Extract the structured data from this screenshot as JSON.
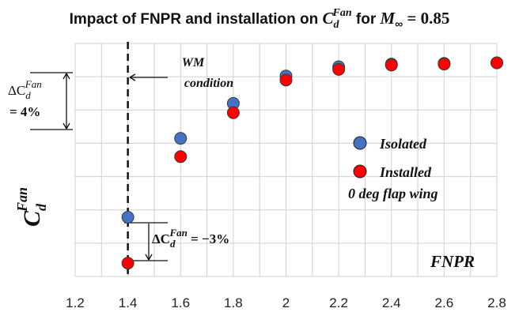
{
  "chart_data": {
    "type": "scatter",
    "title": {
      "prefix": "Impact of FNPR and installation on ",
      "sym": "C",
      "sub": "d",
      "sup": "Fan",
      "mid": " for ",
      "mach_sym": "M",
      "mach_sub": "∞",
      "mach_val": " = 0.85"
    },
    "xlabel": "FNPR",
    "ylabel": {
      "sym": "C",
      "sub": "d",
      "sup": "Fan"
    },
    "xlim": [
      1.2,
      2.8
    ],
    "x_ticks": [
      "1.2",
      "1.4",
      "1.6",
      "1.8",
      "2",
      "2.2",
      "2.4",
      "2.6",
      "2.8"
    ],
    "ylim": [
      0,
      7
    ],
    "grid": true,
    "legend_position": "middle-right",
    "series": [
      {
        "name": "Isolated",
        "color": "#4472c4",
        "x": [
          1.4,
          1.6,
          1.8,
          2.0,
          2.2,
          2.4,
          2.6,
          2.8
        ],
        "y": [
          1.78,
          4.15,
          5.2,
          6.02,
          6.3,
          6.38,
          6.4,
          6.42
        ]
      },
      {
        "name": "Installed",
        "name_line2": "0 deg flap wing",
        "color": "#ff0000",
        "x": [
          1.4,
          1.6,
          1.8,
          2.0,
          2.2,
          2.4,
          2.6,
          2.8
        ],
        "y": [
          0.4,
          3.6,
          4.92,
          5.9,
          6.22,
          6.35,
          6.38,
          6.42
        ]
      }
    ],
    "reference_line": {
      "x": 1.4,
      "label_line1": "WM",
      "label_line2": "condition"
    },
    "annotations": {
      "delta_left": {
        "prefix": "ΔC",
        "sub": "d",
        "sup": "Fan",
        "line2": "= 4%"
      },
      "delta_bottom": {
        "prefix": "ΔC",
        "sub": "d",
        "sup": "Fan",
        "suffix": " = −3%"
      }
    }
  }
}
